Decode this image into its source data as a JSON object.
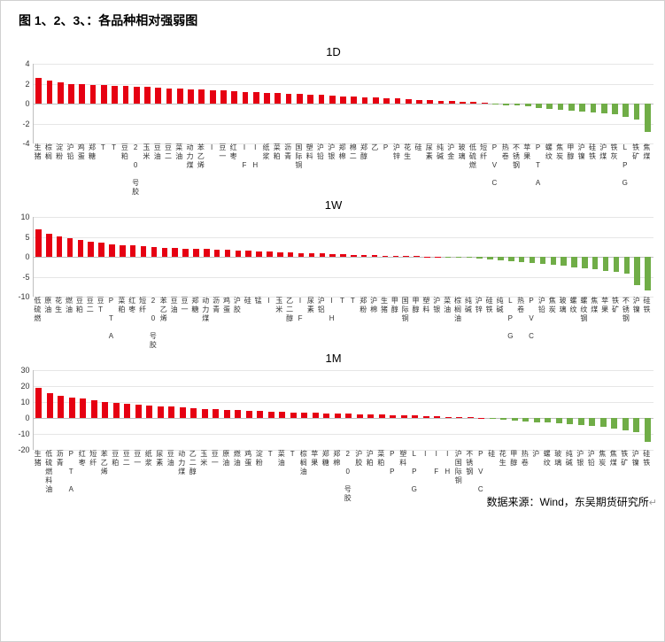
{
  "figure_title": "图 1、2、3、：各品种相对强弱图",
  "source_text": "数据来源：Wind，东吴期货研究所",
  "colors": {
    "pos": "#e60012",
    "neg": "#70ad47",
    "grid": "#e6e6e6",
    "axis": "#bfbfbf",
    "text": "#333333",
    "bg": "#ffffff"
  },
  "charts": [
    {
      "title": "1D",
      "ylim": [
        -4,
        4
      ],
      "ytick_step": 2,
      "bars": [
        {
          "l": "生猪",
          "v": 2.6
        },
        {
          "l": "棕榈",
          "v": 2.3
        },
        {
          "l": "淀粉",
          "v": 2.1
        },
        {
          "l": "沪铅",
          "v": 2.0
        },
        {
          "l": "鸡蛋",
          "v": 1.95
        },
        {
          "l": "郑糖",
          "v": 1.9
        },
        {
          "l": "T",
          "v": 1.85
        },
        {
          "l": "T",
          "v": 1.8
        },
        {
          "l": "豆粕",
          "v": 1.75
        },
        {
          "l": "2 0 号胶",
          "v": 1.7
        },
        {
          "l": "玉米",
          "v": 1.65
        },
        {
          "l": "豆油",
          "v": 1.6
        },
        {
          "l": "豆二",
          "v": 1.55
        },
        {
          "l": "菜油",
          "v": 1.5
        },
        {
          "l": "动力煤",
          "v": 1.45
        },
        {
          "l": "苯乙烯",
          "v": 1.4
        },
        {
          "l": "I",
          "v": 1.35
        },
        {
          "l": "豆一",
          "v": 1.3
        },
        {
          "l": "红枣",
          "v": 1.25
        },
        {
          "l": "I F",
          "v": 1.2
        },
        {
          "l": "I H",
          "v": 1.15
        },
        {
          "l": "纸浆",
          "v": 1.1
        },
        {
          "l": "菜粕",
          "v": 1.05
        },
        {
          "l": "沥青",
          "v": 1.0
        },
        {
          "l": "国际铜",
          "v": 0.95
        },
        {
          "l": "塑料",
          "v": 0.9
        },
        {
          "l": "沪铅",
          "v": 0.85
        },
        {
          "l": "沪银",
          "v": 0.8
        },
        {
          "l": "郑棉",
          "v": 0.75
        },
        {
          "l": "棉二",
          "v": 0.7
        },
        {
          "l": "郑醇",
          "v": 0.65
        },
        {
          "l": "乙",
          "v": 0.6
        },
        {
          "l": "P",
          "v": 0.55
        },
        {
          "l": "沪锌",
          "v": 0.5
        },
        {
          "l": "花生",
          "v": 0.45
        },
        {
          "l": "硅",
          "v": 0.4
        },
        {
          "l": "尿素",
          "v": 0.35
        },
        {
          "l": "纯碱",
          "v": 0.3
        },
        {
          "l": "沪金",
          "v": 0.25
        },
        {
          "l": "玻璃",
          "v": 0.2
        },
        {
          "l": "低硫燃",
          "v": 0.15
        },
        {
          "l": "短纤",
          "v": 0.1
        },
        {
          "l": "P V C",
          "v": -0.1
        },
        {
          "l": "热卷",
          "v": -0.15
        },
        {
          "l": "不锈钢",
          "v": -0.2
        },
        {
          "l": "苹果",
          "v": -0.3
        },
        {
          "l": "P T A",
          "v": -0.4
        },
        {
          "l": "螺纹",
          "v": -0.5
        },
        {
          "l": "焦炭",
          "v": -0.6
        },
        {
          "l": "甲醇",
          "v": -0.7
        },
        {
          "l": "沪镍",
          "v": -0.8
        },
        {
          "l": "硅铁",
          "v": -0.9
        },
        {
          "l": "沪煤",
          "v": -1.0
        },
        {
          "l": "铁灰",
          "v": -1.1
        },
        {
          "l": "L P G",
          "v": -1.3
        },
        {
          "l": "铁矿",
          "v": -1.6
        },
        {
          "l": "焦煤",
          "v": -2.8
        }
      ]
    },
    {
      "title": "1W",
      "ylim": [
        -10,
        10
      ],
      "ytick_step": 5,
      "bars": [
        {
          "l": "低硫燃",
          "v": 6.8
        },
        {
          "l": "原油",
          "v": 5.8
        },
        {
          "l": "花生",
          "v": 5.2
        },
        {
          "l": "燃油",
          "v": 4.6
        },
        {
          "l": "豆粕",
          "v": 4.2
        },
        {
          "l": "豆二",
          "v": 3.8
        },
        {
          "l": "豆T",
          "v": 3.5
        },
        {
          "l": "P T A",
          "v": 3.2
        },
        {
          "l": "菜粕",
          "v": 3.0
        },
        {
          "l": "红枣",
          "v": 2.8
        },
        {
          "l": "短纤",
          "v": 2.6
        },
        {
          "l": "2 0 号胶",
          "v": 2.4
        },
        {
          "l": "苯乙烯",
          "v": 2.3
        },
        {
          "l": "豆油",
          "v": 2.2
        },
        {
          "l": "豆一",
          "v": 2.1
        },
        {
          "l": "郑糖",
          "v": 2.0
        },
        {
          "l": "动力煤",
          "v": 1.9
        },
        {
          "l": "沥青",
          "v": 1.8
        },
        {
          "l": "鸡蛋",
          "v": 1.7
        },
        {
          "l": "沪胶",
          "v": 1.6
        },
        {
          "l": "硅",
          "v": 1.5
        },
        {
          "l": "锰",
          "v": 1.4
        },
        {
          "l": "I",
          "v": 1.3
        },
        {
          "l": "玉米",
          "v": 1.2
        },
        {
          "l": "乙二醇",
          "v": 1.1
        },
        {
          "l": "I F",
          "v": 1.0
        },
        {
          "l": "尿素",
          "v": 0.9
        },
        {
          "l": "沪铝",
          "v": 0.8
        },
        {
          "l": "I H",
          "v": 0.7
        },
        {
          "l": "T",
          "v": 0.6
        },
        {
          "l": "T",
          "v": 0.5
        },
        {
          "l": "郑粉",
          "v": 0.4
        },
        {
          "l": "沪棉",
          "v": 0.35
        },
        {
          "l": "生猪",
          "v": 0.3
        },
        {
          "l": "甲醇",
          "v": 0.25
        },
        {
          "l": "国际铜",
          "v": 0.2
        },
        {
          "l": "甲醇",
          "v": 0.15
        },
        {
          "l": "塑料",
          "v": 0.1
        },
        {
          "l": "沪银",
          "v": 0.08
        },
        {
          "l": "菜油",
          "v": -0.1
        },
        {
          "l": "棕榈油",
          "v": -0.2
        },
        {
          "l": "纯碱",
          "v": -0.3
        },
        {
          "l": "沪锌",
          "v": -0.5
        },
        {
          "l": "硅铁",
          "v": -0.7
        },
        {
          "l": "纯碱",
          "v": -0.9
        },
        {
          "l": "L P G",
          "v": -1.1
        },
        {
          "l": "热卷",
          "v": -1.3
        },
        {
          "l": "P V C",
          "v": -1.5
        },
        {
          "l": "沪铅",
          "v": -1.7
        },
        {
          "l": "焦炭",
          "v": -2.0
        },
        {
          "l": "玻璃",
          "v": -2.3
        },
        {
          "l": "螺纹",
          "v": -2.6
        },
        {
          "l": "螺纹钢",
          "v": -2.9
        },
        {
          "l": "焦煤",
          "v": -3.2
        },
        {
          "l": "苹果",
          "v": -3.5
        },
        {
          "l": "铁矿",
          "v": -3.8
        },
        {
          "l": "不锈钢",
          "v": -4.2
        },
        {
          "l": "沪镍",
          "v": -7.0
        },
        {
          "l": "硅铁",
          "v": -8.5
        }
      ]
    },
    {
      "title": "1M",
      "ylim": [
        -20,
        30
      ],
      "ytick_step": 10,
      "bars": [
        {
          "l": "生猪",
          "v": 19.0
        },
        {
          "l": "低硫燃料油",
          "v": 15.5
        },
        {
          "l": "沥青",
          "v": 14.0
        },
        {
          "l": "P T A",
          "v": 13.0
        },
        {
          "l": "红枣",
          "v": 12.0
        },
        {
          "l": "短纤",
          "v": 11.0
        },
        {
          "l": "苯乙烯",
          "v": 10.0
        },
        {
          "l": "豆粕",
          "v": 9.5
        },
        {
          "l": "豆二",
          "v": 9.0
        },
        {
          "l": "豆一",
          "v": 8.5
        },
        {
          "l": "纸浆",
          "v": 8.0
        },
        {
          "l": "尿素",
          "v": 7.5
        },
        {
          "l": "豆油",
          "v": 7.0
        },
        {
          "l": "动力煤",
          "v": 6.5
        },
        {
          "l": "乙二醇",
          "v": 6.0
        },
        {
          "l": "玉米",
          "v": 5.7
        },
        {
          "l": "豆一",
          "v": 5.4
        },
        {
          "l": "原油",
          "v": 5.1
        },
        {
          "l": "燃油",
          "v": 4.8
        },
        {
          "l": "鸡蛋",
          "v": 4.5
        },
        {
          "l": "淀粉",
          "v": 4.2
        },
        {
          "l": "T",
          "v": 4.0
        },
        {
          "l": "菜油",
          "v": 3.8
        },
        {
          "l": "T",
          "v": 3.6
        },
        {
          "l": "棕榈油",
          "v": 3.4
        },
        {
          "l": "苹果",
          "v": 3.2
        },
        {
          "l": "郑糖",
          "v": 3.0
        },
        {
          "l": "郑棉",
          "v": 2.8
        },
        {
          "l": "2 0 号胶",
          "v": 2.6
        },
        {
          "l": "沪胶",
          "v": 2.4
        },
        {
          "l": "沪粕",
          "v": 2.2
        },
        {
          "l": "菜粕",
          "v": 2.0
        },
        {
          "l": "P P",
          "v": 1.8
        },
        {
          "l": "塑料",
          "v": 1.6
        },
        {
          "l": "L P G",
          "v": 1.4
        },
        {
          "l": "I",
          "v": 1.2
        },
        {
          "l": "I F",
          "v": 1.0
        },
        {
          "l": "I H",
          "v": 0.8
        },
        {
          "l": "沪国际铜",
          "v": 0.6
        },
        {
          "l": "不锈钢",
          "v": 0.4
        },
        {
          "l": "P V C",
          "v": 0.2
        },
        {
          "l": "硅",
          "v": -0.5
        },
        {
          "l": "花生",
          "v": -1.0
        },
        {
          "l": "甲醇",
          "v": -1.5
        },
        {
          "l": "热卷",
          "v": -2.0
        },
        {
          "l": "沪",
          "v": -2.5
        },
        {
          "l": "螺纹",
          "v": -3.0
        },
        {
          "l": "玻璃",
          "v": -3.5
        },
        {
          "l": "纯碱",
          "v": -4.0
        },
        {
          "l": "沪银",
          "v": -4.5
        },
        {
          "l": "沪铅",
          "v": -5.0
        },
        {
          "l": "焦炭",
          "v": -5.8
        },
        {
          "l": "焦煤",
          "v": -6.5
        },
        {
          "l": "铁矿",
          "v": -7.5
        },
        {
          "l": "沪镍",
          "v": -9.0
        },
        {
          "l": "硅铁",
          "v": -15.0
        }
      ]
    }
  ]
}
